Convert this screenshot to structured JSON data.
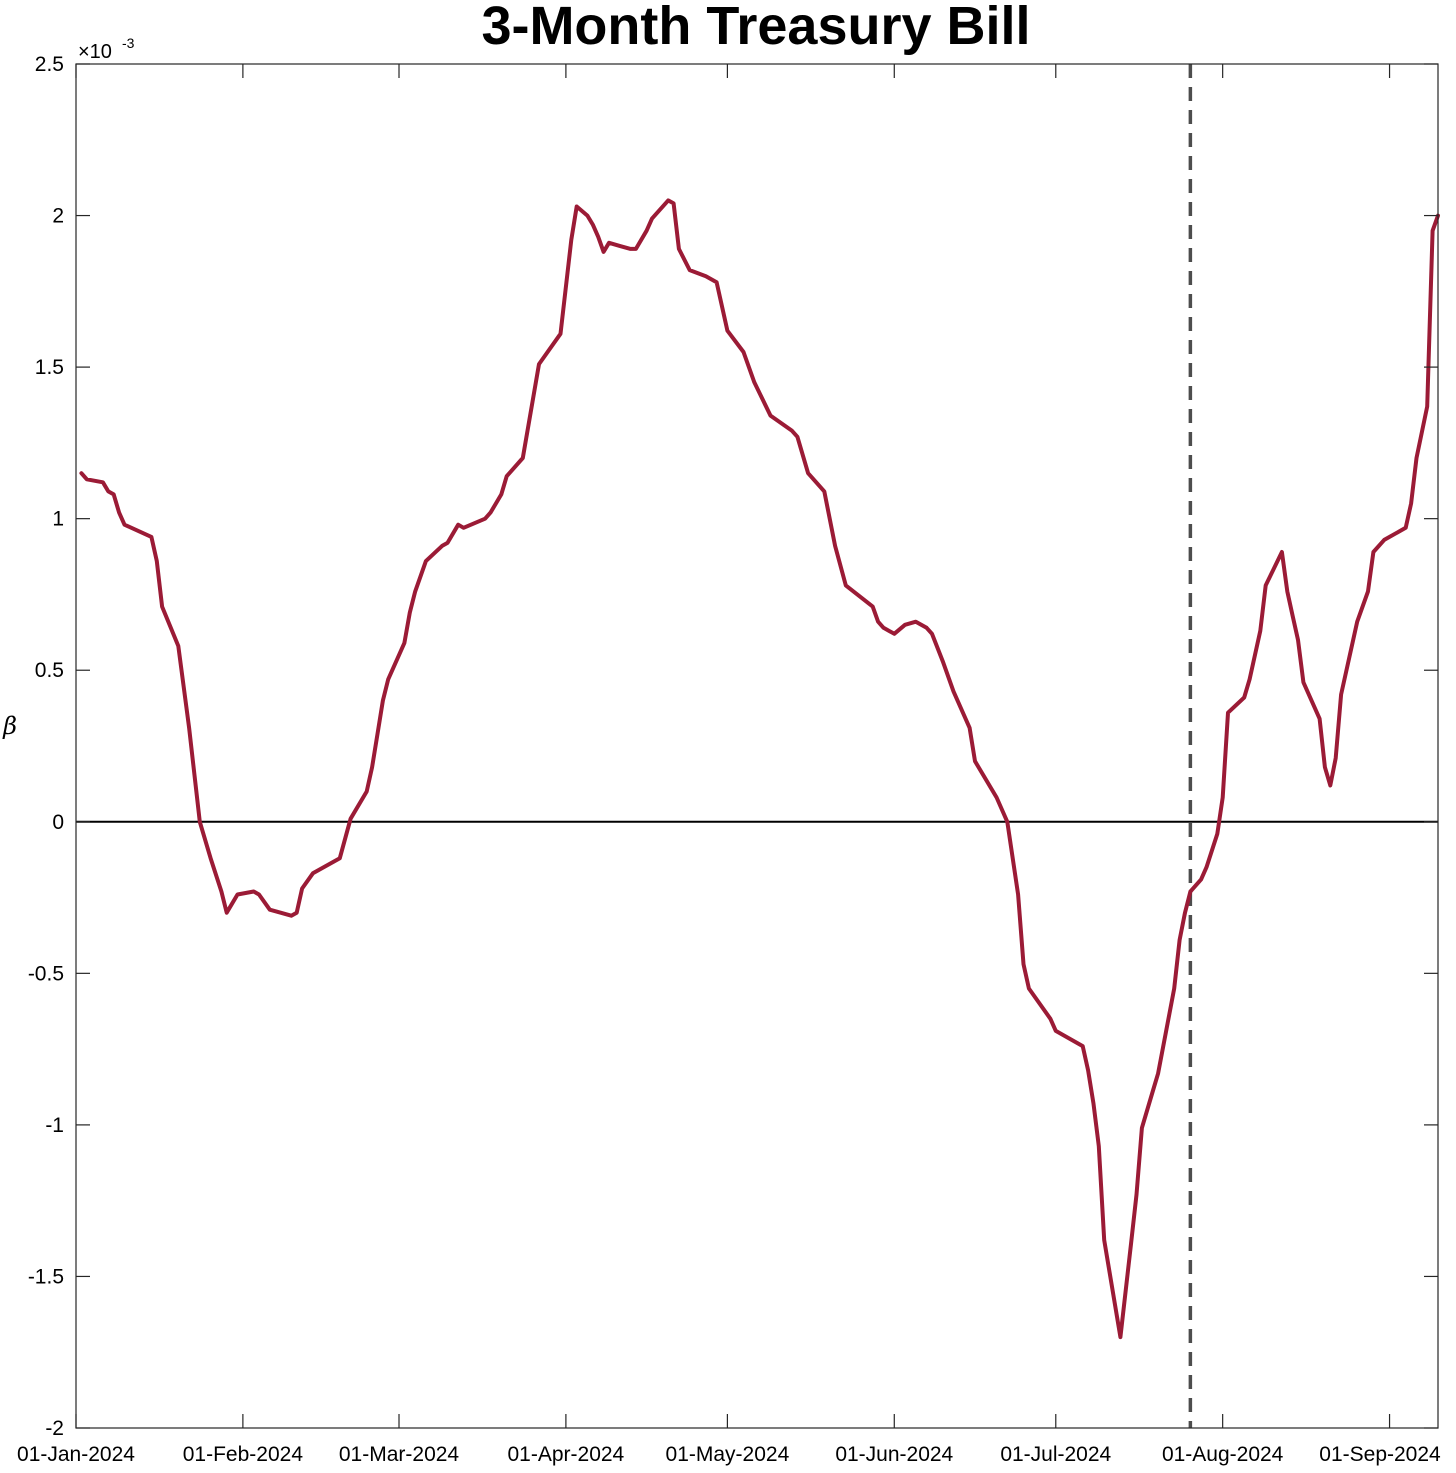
{
  "chart_data": {
    "type": "line",
    "title": "3-Month Treasury Bill",
    "ylabel": "β",
    "y_exponent_label": "×10",
    "y_exponent_power": "-3",
    "xlim": [
      "2024-01-01",
      "2024-09-10"
    ],
    "ylim": [
      -2.0,
      2.5
    ],
    "y_scale_note": "values in units of 10^-3",
    "x_ticks": [
      {
        "date": "2024-01-01",
        "label": "01-Jan-2024"
      },
      {
        "date": "2024-02-01",
        "label": "01-Feb-2024"
      },
      {
        "date": "2024-03-01",
        "label": "01-Mar-2024"
      },
      {
        "date": "2024-04-01",
        "label": "01-Apr-2024"
      },
      {
        "date": "2024-05-01",
        "label": "01-May-2024"
      },
      {
        "date": "2024-06-01",
        "label": "01-Jun-2024"
      },
      {
        "date": "2024-07-01",
        "label": "01-Jul-2024"
      },
      {
        "date": "2024-08-01",
        "label": "01-Aug-2024"
      },
      {
        "date": "2024-09-01",
        "label": "01-Sep-2024"
      }
    ],
    "y_ticks": [
      {
        "value": 2.5,
        "label": "2.5"
      },
      {
        "value": 2.0,
        "label": "2"
      },
      {
        "value": 1.5,
        "label": "1.5"
      },
      {
        "value": 1.0,
        "label": "1"
      },
      {
        "value": 0.5,
        "label": "0.5"
      },
      {
        "value": 0.0,
        "label": "0"
      },
      {
        "value": -0.5,
        "label": "-0.5"
      },
      {
        "value": -1.0,
        "label": "-1"
      },
      {
        "value": -1.5,
        "label": "-1.5"
      },
      {
        "value": -2.0,
        "label": "-2"
      }
    ],
    "zero_line": true,
    "vertical_marker": {
      "date": "2024-07-26",
      "style": "dashed",
      "color": "#4d4d4d"
    },
    "line_color": "#9b1b36",
    "series": [
      {
        "points": [
          [
            "2024-01-02",
            1.15
          ],
          [
            "2024-01-03",
            1.13
          ],
          [
            "2024-01-06",
            1.12
          ],
          [
            "2024-01-07",
            1.09
          ],
          [
            "2024-01-08",
            1.08
          ],
          [
            "2024-01-09",
            1.02
          ],
          [
            "2024-01-10",
            0.98
          ],
          [
            "2024-01-15",
            0.94
          ],
          [
            "2024-01-16",
            0.86
          ],
          [
            "2024-01-17",
            0.71
          ],
          [
            "2024-01-20",
            0.58
          ],
          [
            "2024-01-22",
            0.31
          ],
          [
            "2024-01-24",
            0.0
          ],
          [
            "2024-01-26",
            -0.12
          ],
          [
            "2024-01-28",
            -0.23
          ],
          [
            "2024-01-29",
            -0.3
          ],
          [
            "2024-01-31",
            -0.24
          ],
          [
            "2024-02-03",
            -0.23
          ],
          [
            "2024-02-04",
            -0.24
          ],
          [
            "2024-02-06",
            -0.29
          ],
          [
            "2024-02-08",
            -0.3
          ],
          [
            "2024-02-10",
            -0.31
          ],
          [
            "2024-02-11",
            -0.3
          ],
          [
            "2024-02-12",
            -0.22
          ],
          [
            "2024-02-14",
            -0.17
          ],
          [
            "2024-02-19",
            -0.12
          ],
          [
            "2024-02-21",
            0.01
          ],
          [
            "2024-02-24",
            0.1
          ],
          [
            "2024-02-25",
            0.18
          ],
          [
            "2024-02-26",
            0.29
          ],
          [
            "2024-02-27",
            0.4
          ],
          [
            "2024-02-28",
            0.47
          ],
          [
            "2024-03-02",
            0.59
          ],
          [
            "2024-03-03",
            0.69
          ],
          [
            "2024-03-04",
            0.76
          ],
          [
            "2024-03-06",
            0.86
          ],
          [
            "2024-03-09",
            0.91
          ],
          [
            "2024-03-10",
            0.92
          ],
          [
            "2024-03-12",
            0.98
          ],
          [
            "2024-03-13",
            0.97
          ],
          [
            "2024-03-17",
            1.0
          ],
          [
            "2024-03-18",
            1.02
          ],
          [
            "2024-03-19",
            1.05
          ],
          [
            "2024-03-20",
            1.08
          ],
          [
            "2024-03-21",
            1.14
          ],
          [
            "2024-03-24",
            1.2
          ],
          [
            "2024-03-27",
            1.51
          ],
          [
            "2024-03-31",
            1.61
          ],
          [
            "2024-04-02",
            1.92
          ],
          [
            "2024-04-03",
            2.03
          ],
          [
            "2024-04-05",
            2.0
          ],
          [
            "2024-04-06",
            1.97
          ],
          [
            "2024-04-07",
            1.93
          ],
          [
            "2024-04-08",
            1.88
          ],
          [
            "2024-04-09",
            1.91
          ],
          [
            "2024-04-11",
            1.9
          ],
          [
            "2024-04-13",
            1.89
          ],
          [
            "2024-04-14",
            1.89
          ],
          [
            "2024-04-16",
            1.95
          ],
          [
            "2024-04-17",
            1.99
          ],
          [
            "2024-04-20",
            2.05
          ],
          [
            "2024-04-21",
            2.04
          ],
          [
            "2024-04-22",
            1.89
          ],
          [
            "2024-04-24",
            1.82
          ],
          [
            "2024-04-27",
            1.8
          ],
          [
            "2024-04-29",
            1.78
          ],
          [
            "2024-05-01",
            1.62
          ],
          [
            "2024-05-04",
            1.55
          ],
          [
            "2024-05-06",
            1.45
          ],
          [
            "2024-05-09",
            1.34
          ],
          [
            "2024-05-13",
            1.29
          ],
          [
            "2024-05-14",
            1.27
          ],
          [
            "2024-05-16",
            1.15
          ],
          [
            "2024-05-19",
            1.09
          ],
          [
            "2024-05-21",
            0.91
          ],
          [
            "2024-05-23",
            0.78
          ],
          [
            "2024-05-28",
            0.71
          ],
          [
            "2024-05-29",
            0.66
          ],
          [
            "2024-05-30",
            0.64
          ],
          [
            "2024-06-01",
            0.62
          ],
          [
            "2024-06-03",
            0.65
          ],
          [
            "2024-06-05",
            0.66
          ],
          [
            "2024-06-07",
            0.64
          ],
          [
            "2024-06-08",
            0.62
          ],
          [
            "2024-06-10",
            0.53
          ],
          [
            "2024-06-12",
            0.43
          ],
          [
            "2024-06-15",
            0.31
          ],
          [
            "2024-06-16",
            0.2
          ],
          [
            "2024-06-20",
            0.08
          ],
          [
            "2024-06-22",
            0.0
          ],
          [
            "2024-06-24",
            -0.24
          ],
          [
            "2024-06-25",
            -0.47
          ],
          [
            "2024-06-26",
            -0.55
          ],
          [
            "2024-06-30",
            -0.65
          ],
          [
            "2024-07-01",
            -0.69
          ],
          [
            "2024-07-06",
            -0.74
          ],
          [
            "2024-07-07",
            -0.82
          ],
          [
            "2024-07-08",
            -0.93
          ],
          [
            "2024-07-09",
            -1.07
          ],
          [
            "2024-07-10",
            -1.38
          ],
          [
            "2024-07-13",
            -1.7
          ],
          [
            "2024-07-15",
            -1.39
          ],
          [
            "2024-07-16",
            -1.23
          ],
          [
            "2024-07-17",
            -1.01
          ],
          [
            "2024-07-19",
            -0.89
          ],
          [
            "2024-07-20",
            -0.83
          ],
          [
            "2024-07-23",
            -0.55
          ],
          [
            "2024-07-24",
            -0.39
          ],
          [
            "2024-07-25",
            -0.3
          ],
          [
            "2024-07-26",
            -0.23
          ],
          [
            "2024-07-28",
            -0.19
          ],
          [
            "2024-07-29",
            -0.15
          ],
          [
            "2024-07-31",
            -0.04
          ],
          [
            "2024-08-01",
            0.08
          ],
          [
            "2024-08-02",
            0.36
          ],
          [
            "2024-08-05",
            0.41
          ],
          [
            "2024-08-06",
            0.47
          ],
          [
            "2024-08-08",
            0.63
          ],
          [
            "2024-08-09",
            0.78
          ],
          [
            "2024-08-12",
            0.89
          ],
          [
            "2024-08-13",
            0.76
          ],
          [
            "2024-08-14",
            0.68
          ],
          [
            "2024-08-15",
            0.6
          ],
          [
            "2024-08-16",
            0.46
          ],
          [
            "2024-08-19",
            0.34
          ],
          [
            "2024-08-20",
            0.18
          ],
          [
            "2024-08-21",
            0.12
          ],
          [
            "2024-08-22",
            0.21
          ],
          [
            "2024-08-23",
            0.42
          ],
          [
            "2024-08-26",
            0.66
          ],
          [
            "2024-08-28",
            0.76
          ],
          [
            "2024-08-29",
            0.89
          ],
          [
            "2024-08-31",
            0.93
          ],
          [
            "2024-09-04",
            0.97
          ],
          [
            "2024-09-05",
            1.05
          ],
          [
            "2024-09-06",
            1.2
          ],
          [
            "2024-09-08",
            1.37
          ],
          [
            "2024-09-09",
            1.95
          ],
          [
            "2024-09-10",
            2.0
          ]
        ]
      }
    ]
  }
}
